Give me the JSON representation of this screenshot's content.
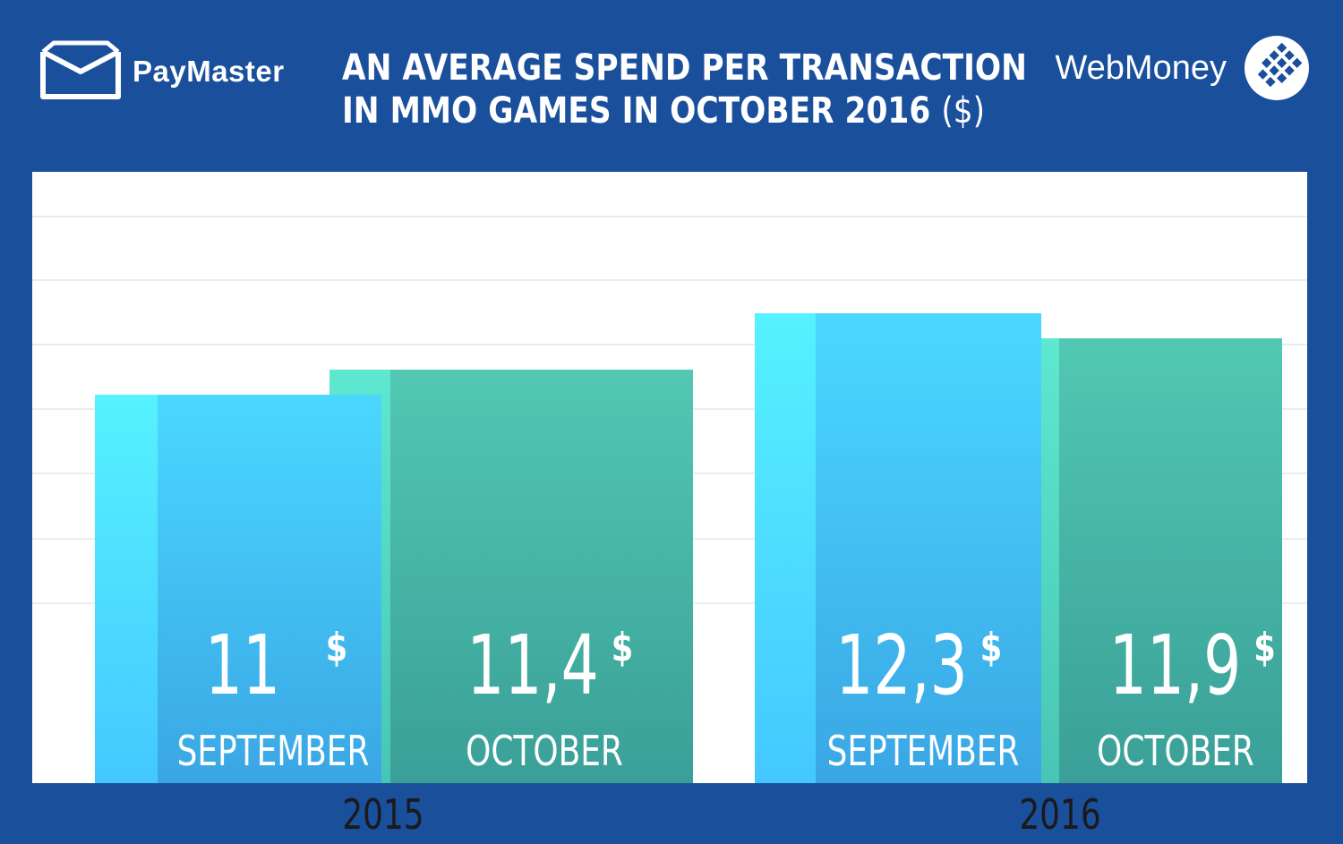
{
  "header": {
    "brand_left": "PayMaster",
    "title_line1": "AN AVERAGE SPEND PER TRANSACTION",
    "title_line2": "IN MMO GAMES IN OCTOBER 2016",
    "title_unit": "($)",
    "brand_right": "WebMoney",
    "icons": {
      "left": "paymaster-logo-icon",
      "right": "webmoney-logo-icon"
    }
  },
  "colors": {
    "background": "#1a4f9c",
    "plot_bg": "#ffffff",
    "gridline": "#ececec",
    "september_bar": "#40b8ec",
    "september_side": "#52e4ff",
    "october_bar": "#45b4a4",
    "october_side": "#5ce0cc",
    "label_text": "#ffffff",
    "year_text": "#1a1a1a"
  },
  "chart_data": {
    "type": "bar",
    "title": "AN AVERAGE SPEND PER TRANSACTION IN MMO GAMES IN OCTOBER 2016 ($)",
    "xlabel": "",
    "ylabel": "",
    "groups": [
      "2015",
      "2016"
    ],
    "categories": [
      "SEPTEMBER",
      "OCTOBER"
    ],
    "series": [
      {
        "group": "2015",
        "values": [
          11,
          11.4
        ],
        "labels": [
          "11",
          "11,4"
        ]
      },
      {
        "group": "2016",
        "values": [
          12.3,
          11.9
        ],
        "labels": [
          "12,3",
          "11,9"
        ]
      }
    ],
    "currency_symbol": "$",
    "grid": true,
    "legend": "none"
  }
}
